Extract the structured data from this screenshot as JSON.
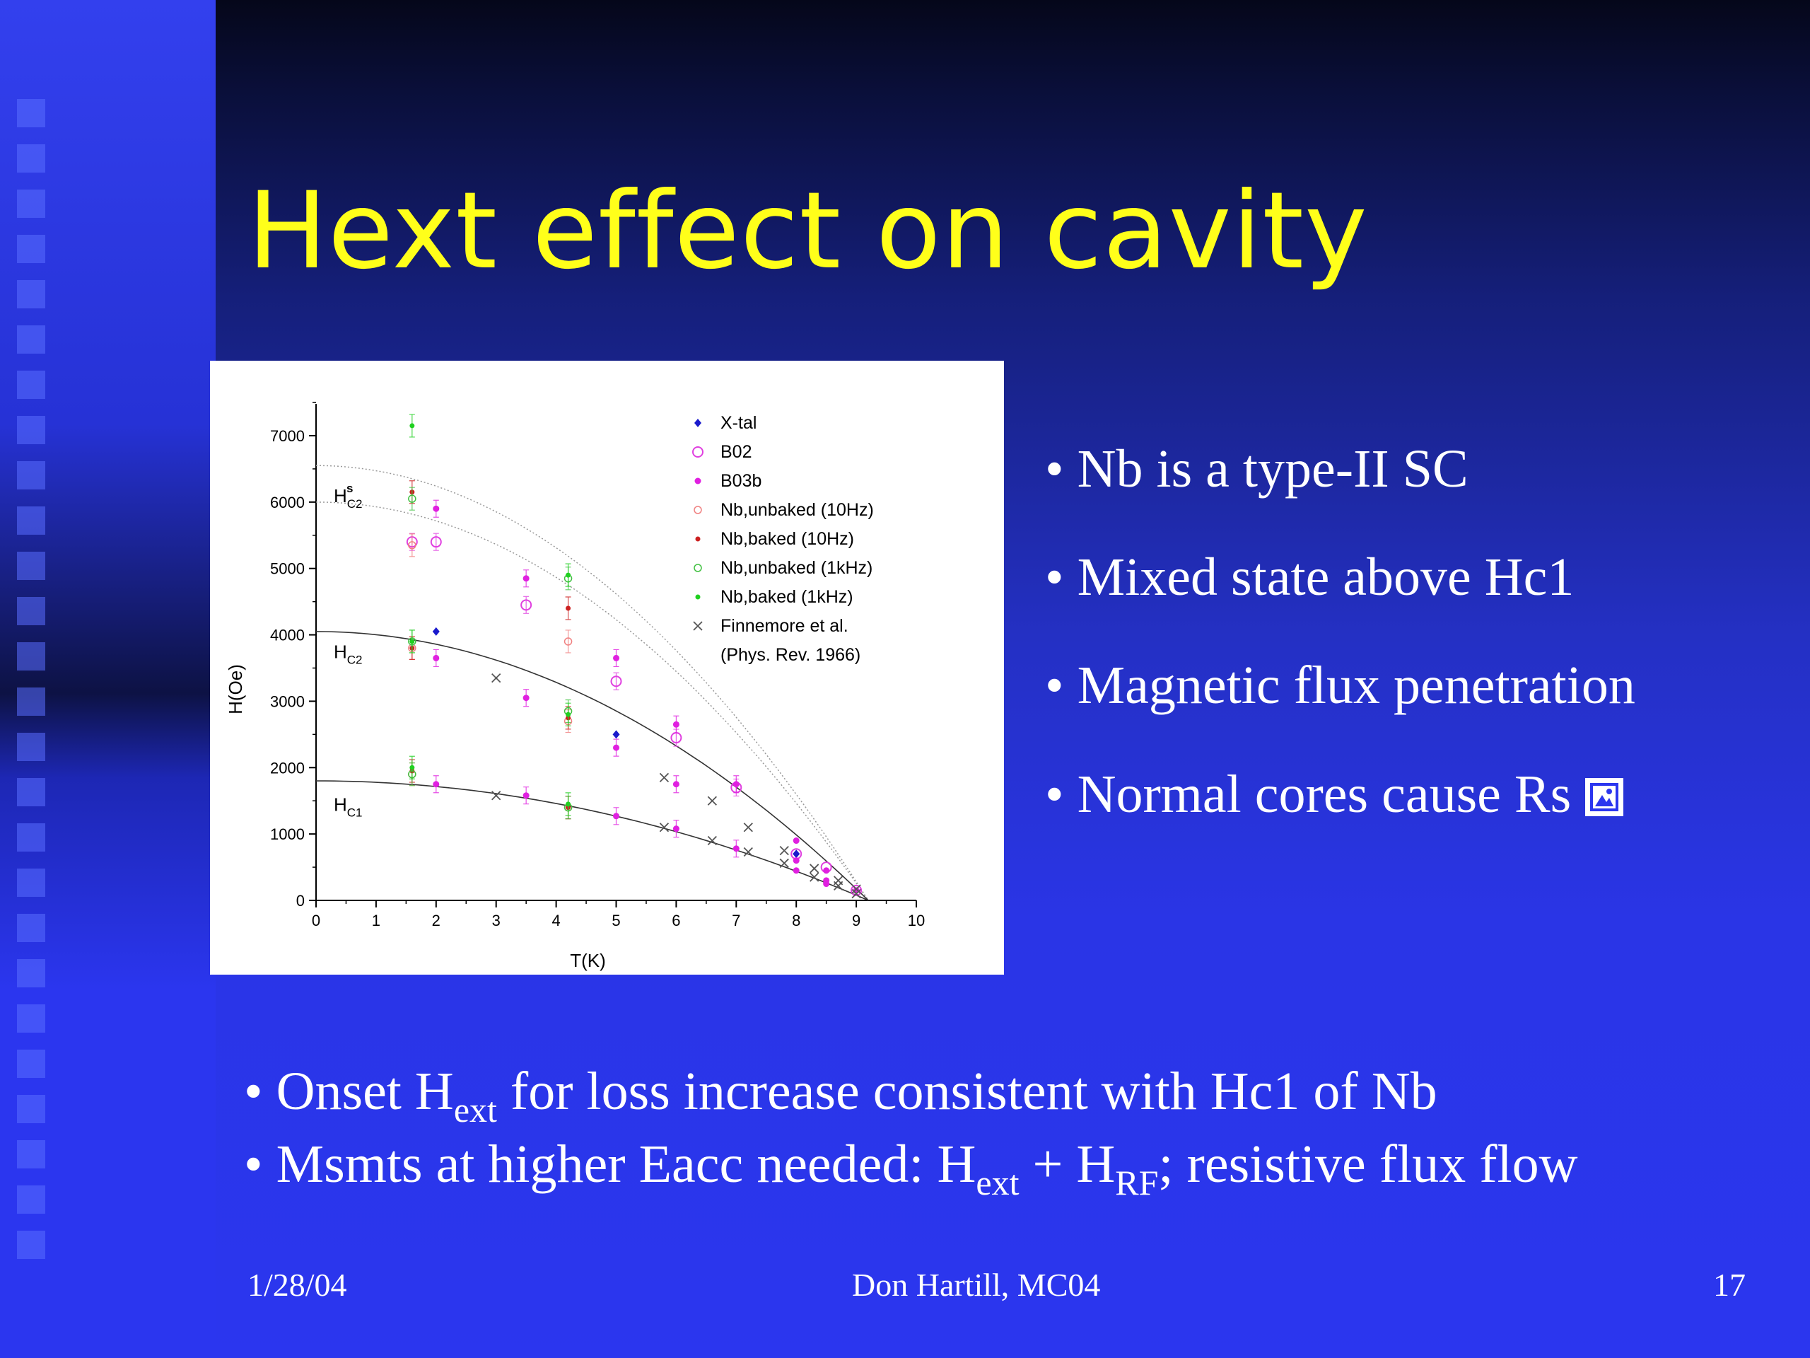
{
  "slide": {
    "title": "Hext effect on cavity",
    "bullets": [
      "Nb is a type-II SC",
      "Mixed state above Hc1",
      "Magnetic flux penetration",
      "Normal cores cause Rs"
    ],
    "bottom": {
      "line1": {
        "pre": "Onset H",
        "sub": "ext",
        "post": " for loss increase consistent with Hc1 of Nb"
      },
      "line2": {
        "pre": "Msmts at higher Eacc needed: H",
        "sub1": "ext",
        "mid": " + H",
        "sub2": "RF",
        "post": "; resistive flux flow"
      }
    },
    "footer": {
      "date": "1/28/04",
      "author": "Don Hartill,   MC04",
      "page": "17"
    },
    "colors": {
      "title": "#ffff1a",
      "text": "#ffffff",
      "background": "#2b36ef"
    }
  },
  "chart_data": {
    "type": "scatter",
    "xlabel": "T(K)",
    "ylabel": "H(Oe)",
    "xlim": [
      0,
      10
    ],
    "ylim": [
      0,
      7000
    ],
    "xticks": [
      0,
      1,
      2,
      3,
      4,
      5,
      6,
      7,
      8,
      9,
      10
    ],
    "yticks": [
      0,
      1000,
      2000,
      3000,
      4000,
      5000,
      6000,
      7000
    ],
    "legend_position": "top-right",
    "curve_labels": [
      {
        "text": "H",
        "sub": "C2",
        "sup": "s",
        "x": 0.2,
        "y": 6000
      },
      {
        "text": "H",
        "sub": "C2",
        "sup": "",
        "x": 0.2,
        "y": 3650
      },
      {
        "text": "H",
        "sub": "C1",
        "sup": "",
        "x": 0.2,
        "y": 1350
      }
    ],
    "fit_curves": [
      {
        "name": "Hc2s upper",
        "Tc": 9.2,
        "H0": 6550
      },
      {
        "name": "Hc2s lower",
        "Tc": 9.2,
        "H0": 6000
      },
      {
        "name": "Hc2",
        "Tc": 9.2,
        "H0": 4050
      },
      {
        "name": "Hc1",
        "Tc": 9.2,
        "H0": 1800
      }
    ],
    "series": [
      {
        "name": "X-tal",
        "marker": "diamond",
        "color": "#1a1acc",
        "points": [
          [
            2.0,
            4050
          ],
          [
            5.0,
            2500
          ],
          [
            8.0,
            700
          ]
        ]
      },
      {
        "name": "B02",
        "marker": "open-circle",
        "color": "#e040e0",
        "points": [
          [
            1.6,
            5400
          ],
          [
            2.0,
            5400
          ],
          [
            3.5,
            4450
          ],
          [
            5.0,
            3300
          ],
          [
            6.0,
            2450
          ],
          [
            7.0,
            1700
          ],
          [
            8.0,
            700
          ],
          [
            8.5,
            500
          ],
          [
            9.0,
            150
          ]
        ]
      },
      {
        "name": "B03b",
        "marker": "filled-circle",
        "color": "#e020e0",
        "points": [
          [
            2.0,
            5900
          ],
          [
            3.5,
            4850
          ],
          [
            5.0,
            3650
          ],
          [
            6.0,
            2650
          ],
          [
            7.0,
            1750
          ],
          [
            8.0,
            900
          ],
          [
            8.5,
            450
          ],
          [
            9.0,
            150
          ],
          [
            2.0,
            3650
          ],
          [
            3.5,
            3050
          ],
          [
            5.0,
            2300
          ],
          [
            6.0,
            1750
          ],
          [
            8.0,
            600
          ],
          [
            8.5,
            300
          ],
          [
            2.0,
            1750
          ],
          [
            3.5,
            1580
          ],
          [
            5.0,
            1270
          ],
          [
            6.0,
            1080
          ],
          [
            7.0,
            780
          ],
          [
            8.0,
            450
          ],
          [
            8.5,
            250
          ]
        ]
      },
      {
        "name": "Nb,unbaked (10Hz)",
        "marker": "small-open-circle",
        "color": "#f08080",
        "points": [
          [
            1.6,
            5350
          ],
          [
            4.2,
            3900
          ],
          [
            1.6,
            3800
          ],
          [
            4.2,
            2700
          ],
          [
            1.6,
            1900
          ],
          [
            4.2,
            1400
          ]
        ]
      },
      {
        "name": "Nb,baked (10Hz)",
        "marker": "small-dot",
        "color": "#cc2020",
        "points": [
          [
            1.6,
            6150
          ],
          [
            4.2,
            4400
          ],
          [
            1.6,
            3800
          ],
          [
            4.2,
            2750
          ],
          [
            1.6,
            1950
          ],
          [
            4.2,
            1400
          ]
        ]
      },
      {
        "name": "Nb,unbaked (1kHz)",
        "marker": "small-open-circle",
        "color": "#40c040",
        "points": [
          [
            1.6,
            6050
          ],
          [
            4.2,
            4850
          ],
          [
            1.6,
            3900
          ],
          [
            4.2,
            2850
          ],
          [
            1.6,
            1900
          ],
          [
            4.2,
            1400
          ]
        ]
      },
      {
        "name": "Nb,baked (1kHz)",
        "marker": "small-dot",
        "color": "#20d020",
        "points": [
          [
            1.6,
            7150
          ],
          [
            4.2,
            4900
          ],
          [
            1.6,
            3900
          ],
          [
            4.2,
            2800
          ],
          [
            1.6,
            2000
          ],
          [
            4.2,
            1450
          ]
        ]
      },
      {
        "name": "Finnemore et al.\n(Phys. Rev. 1966)",
        "marker": "cross",
        "color": "#555555",
        "points": [
          [
            3.0,
            3350
          ],
          [
            5.8,
            1850
          ],
          [
            6.6,
            1500
          ],
          [
            7.2,
            1100
          ],
          [
            7.8,
            750
          ],
          [
            8.3,
            480
          ],
          [
            8.7,
            300
          ],
          [
            9.0,
            170
          ],
          [
            3.0,
            1580
          ],
          [
            5.8,
            1100
          ],
          [
            6.6,
            900
          ],
          [
            7.2,
            730
          ],
          [
            7.8,
            560
          ],
          [
            8.3,
            350
          ],
          [
            8.7,
            220
          ],
          [
            9.0,
            100
          ]
        ]
      }
    ]
  }
}
